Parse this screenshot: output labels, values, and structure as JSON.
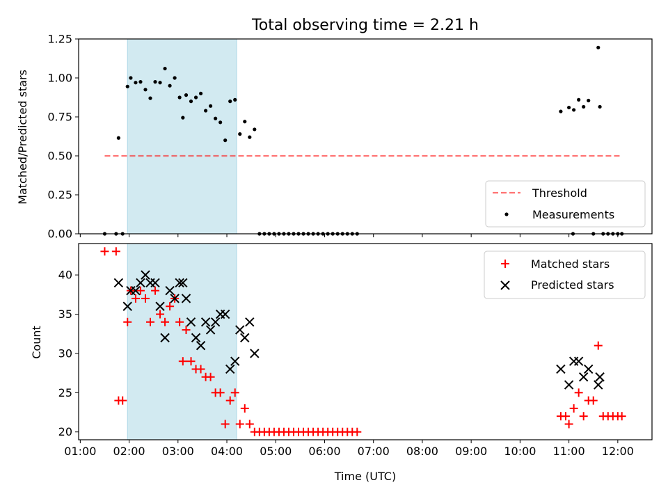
{
  "title": "Total observing time = 2.21 h",
  "chart_data": [
    {
      "type": "scatter",
      "ylabel": "Matched/Predicted stars",
      "ylim": [
        0,
        1.25
      ],
      "yticks": [
        "0.00",
        "0.25",
        "0.50",
        "0.75",
        "1.00",
        "1.25"
      ],
      "shaded_span": {
        "from": "01:58",
        "to": "04:12",
        "color": "#add8e6"
      },
      "threshold": {
        "name": "Threshold",
        "y": 0.5,
        "x_from": "01:30",
        "x_to": "12:05",
        "color": "#ff0000",
        "style": "dashed"
      },
      "legend": {
        "position": "lower right",
        "entries": [
          "Threshold",
          "Measurements"
        ]
      },
      "series": [
        {
          "name": "Measurements",
          "color": "#000000",
          "marker": "dot",
          "points": [
            {
              "x": "01:30",
              "y": 0
            },
            {
              "x": "01:44",
              "y": 0
            },
            {
              "x": "01:47",
              "y": 0.615
            },
            {
              "x": "01:52",
              "y": 0
            },
            {
              "x": "01:58",
              "y": 0.945
            },
            {
              "x": "02:02",
              "y": 1.0
            },
            {
              "x": "02:08",
              "y": 0.97
            },
            {
              "x": "02:14",
              "y": 0.975
            },
            {
              "x": "02:20",
              "y": 0.925
            },
            {
              "x": "02:26",
              "y": 0.87
            },
            {
              "x": "02:32",
              "y": 0.975
            },
            {
              "x": "02:38",
              "y": 0.97
            },
            {
              "x": "02:44",
              "y": 1.06
            },
            {
              "x": "02:50",
              "y": 0.95
            },
            {
              "x": "02:56",
              "y": 1.0
            },
            {
              "x": "03:02",
              "y": 0.875
            },
            {
              "x": "03:06",
              "y": 0.745
            },
            {
              "x": "03:10",
              "y": 0.89
            },
            {
              "x": "03:16",
              "y": 0.85
            },
            {
              "x": "03:22",
              "y": 0.875
            },
            {
              "x": "03:28",
              "y": 0.9
            },
            {
              "x": "03:34",
              "y": 0.79
            },
            {
              "x": "03:40",
              "y": 0.82
            },
            {
              "x": "03:46",
              "y": 0.74
            },
            {
              "x": "03:52",
              "y": 0.715
            },
            {
              "x": "03:58",
              "y": 0.6
            },
            {
              "x": "04:04",
              "y": 0.85
            },
            {
              "x": "04:10",
              "y": 0.86
            },
            {
              "x": "04:16",
              "y": 0.64
            },
            {
              "x": "04:22",
              "y": 0.72
            },
            {
              "x": "04:28",
              "y": 0.62
            },
            {
              "x": "04:34",
              "y": 0.67
            },
            {
              "x": "04:40",
              "y": 0
            },
            {
              "x": "04:46",
              "y": 0
            },
            {
              "x": "04:52",
              "y": 0
            },
            {
              "x": "04:58",
              "y": 0
            },
            {
              "x": "05:04",
              "y": 0
            },
            {
              "x": "05:10",
              "y": 0
            },
            {
              "x": "05:16",
              "y": 0
            },
            {
              "x": "05:22",
              "y": 0
            },
            {
              "x": "05:28",
              "y": 0
            },
            {
              "x": "05:34",
              "y": 0
            },
            {
              "x": "05:40",
              "y": 0
            },
            {
              "x": "05:46",
              "y": 0
            },
            {
              "x": "05:52",
              "y": 0
            },
            {
              "x": "05:58",
              "y": 0
            },
            {
              "x": "06:04",
              "y": 0
            },
            {
              "x": "06:10",
              "y": 0
            },
            {
              "x": "06:16",
              "y": 0
            },
            {
              "x": "06:22",
              "y": 0
            },
            {
              "x": "06:28",
              "y": 0
            },
            {
              "x": "06:34",
              "y": 0
            },
            {
              "x": "06:40",
              "y": 0
            },
            {
              "x": "10:50",
              "y": 0.785
            },
            {
              "x": "11:00",
              "y": 0.81
            },
            {
              "x": "11:05",
              "y": 0
            },
            {
              "x": "11:06",
              "y": 0.795
            },
            {
              "x": "11:12",
              "y": 0.86
            },
            {
              "x": "11:18",
              "y": 0.815
            },
            {
              "x": "11:24",
              "y": 0.855
            },
            {
              "x": "11:30",
              "y": 0
            },
            {
              "x": "11:36",
              "y": 1.195
            },
            {
              "x": "11:38",
              "y": 0.815
            },
            {
              "x": "11:42",
              "y": 0
            },
            {
              "x": "11:48",
              "y": 0
            },
            {
              "x": "11:54",
              "y": 0
            },
            {
              "x": "12:00",
              "y": 0
            },
            {
              "x": "12:05",
              "y": 0
            }
          ]
        }
      ]
    },
    {
      "type": "scatter",
      "xlabel": "Time (UTC)",
      "ylabel": "Count",
      "xlim": [
        "00:58",
        "12:42"
      ],
      "ylim": [
        19,
        44
      ],
      "yticks": [
        "20",
        "25",
        "30",
        "35",
        "40"
      ],
      "xticks": [
        "01:00",
        "02:00",
        "03:00",
        "04:00",
        "05:00",
        "06:00",
        "07:00",
        "08:00",
        "09:00",
        "10:00",
        "11:00",
        "12:00"
      ],
      "shaded_span": {
        "from": "01:58",
        "to": "04:12",
        "color": "#add8e6"
      },
      "legend": {
        "position": "upper right",
        "entries": [
          "Matched stars",
          "Predicted stars"
        ]
      },
      "series": [
        {
          "name": "Matched stars",
          "color": "#ff0000",
          "marker": "plus",
          "points": [
            {
              "x": "01:30",
              "y": 43
            },
            {
              "x": "01:44",
              "y": 43
            },
            {
              "x": "01:47",
              "y": 24
            },
            {
              "x": "01:52",
              "y": 24
            },
            {
              "x": "01:58",
              "y": 34
            },
            {
              "x": "02:02",
              "y": 38
            },
            {
              "x": "02:08",
              "y": 37
            },
            {
              "x": "02:14",
              "y": 38
            },
            {
              "x": "02:20",
              "y": 37
            },
            {
              "x": "02:26",
              "y": 34
            },
            {
              "x": "02:32",
              "y": 38
            },
            {
              "x": "02:38",
              "y": 35
            },
            {
              "x": "02:44",
              "y": 34
            },
            {
              "x": "02:50",
              "y": 36
            },
            {
              "x": "02:56",
              "y": 37
            },
            {
              "x": "03:02",
              "y": 34
            },
            {
              "x": "03:06",
              "y": 29
            },
            {
              "x": "03:10",
              "y": 33
            },
            {
              "x": "03:16",
              "y": 29
            },
            {
              "x": "03:22",
              "y": 28
            },
            {
              "x": "03:28",
              "y": 28
            },
            {
              "x": "03:34",
              "y": 27
            },
            {
              "x": "03:40",
              "y": 27
            },
            {
              "x": "03:46",
              "y": 25
            },
            {
              "x": "03:52",
              "y": 25
            },
            {
              "x": "03:58",
              "y": 21
            },
            {
              "x": "04:04",
              "y": 24
            },
            {
              "x": "04:10",
              "y": 25
            },
            {
              "x": "04:16",
              "y": 21
            },
            {
              "x": "04:22",
              "y": 23
            },
            {
              "x": "04:28",
              "y": 21
            },
            {
              "x": "04:34",
              "y": 20
            },
            {
              "x": "04:40",
              "y": 20
            },
            {
              "x": "04:46",
              "y": 20
            },
            {
              "x": "04:52",
              "y": 20
            },
            {
              "x": "04:58",
              "y": 20
            },
            {
              "x": "05:04",
              "y": 20
            },
            {
              "x": "05:10",
              "y": 20
            },
            {
              "x": "05:16",
              "y": 20
            },
            {
              "x": "05:22",
              "y": 20
            },
            {
              "x": "05:28",
              "y": 20
            },
            {
              "x": "05:34",
              "y": 20
            },
            {
              "x": "05:40",
              "y": 20
            },
            {
              "x": "05:46",
              "y": 20
            },
            {
              "x": "05:52",
              "y": 20
            },
            {
              "x": "05:58",
              "y": 20
            },
            {
              "x": "06:04",
              "y": 20
            },
            {
              "x": "06:10",
              "y": 20
            },
            {
              "x": "06:16",
              "y": 20
            },
            {
              "x": "06:22",
              "y": 20
            },
            {
              "x": "06:28",
              "y": 20
            },
            {
              "x": "06:34",
              "y": 20
            },
            {
              "x": "06:40",
              "y": 20
            },
            {
              "x": "10:50",
              "y": 22
            },
            {
              "x": "10:56",
              "y": 22
            },
            {
              "x": "11:00",
              "y": 21
            },
            {
              "x": "11:06",
              "y": 23
            },
            {
              "x": "11:12",
              "y": 25
            },
            {
              "x": "11:18",
              "y": 22
            },
            {
              "x": "11:24",
              "y": 24
            },
            {
              "x": "11:30",
              "y": 24
            },
            {
              "x": "11:36",
              "y": 31
            },
            {
              "x": "11:42",
              "y": 22
            },
            {
              "x": "11:48",
              "y": 22
            },
            {
              "x": "11:54",
              "y": 22
            },
            {
              "x": "12:00",
              "y": 22
            },
            {
              "x": "12:05",
              "y": 22
            }
          ]
        },
        {
          "name": "Predicted stars",
          "color": "#000000",
          "marker": "x",
          "points": [
            {
              "x": "01:47",
              "y": 39
            },
            {
              "x": "01:58",
              "y": 36
            },
            {
              "x": "02:02",
              "y": 38
            },
            {
              "x": "02:08",
              "y": 38
            },
            {
              "x": "02:14",
              "y": 39
            },
            {
              "x": "02:20",
              "y": 40
            },
            {
              "x": "02:26",
              "y": 39
            },
            {
              "x": "02:32",
              "y": 39
            },
            {
              "x": "02:38",
              "y": 36
            },
            {
              "x": "02:44",
              "y": 32
            },
            {
              "x": "02:50",
              "y": 38
            },
            {
              "x": "02:56",
              "y": 37
            },
            {
              "x": "03:02",
              "y": 39
            },
            {
              "x": "03:06",
              "y": 39
            },
            {
              "x": "03:10",
              "y": 37
            },
            {
              "x": "03:16",
              "y": 34
            },
            {
              "x": "03:22",
              "y": 32
            },
            {
              "x": "03:28",
              "y": 31
            },
            {
              "x": "03:34",
              "y": 34
            },
            {
              "x": "03:40",
              "y": 33
            },
            {
              "x": "03:46",
              "y": 34
            },
            {
              "x": "03:52",
              "y": 35
            },
            {
              "x": "03:58",
              "y": 35
            },
            {
              "x": "04:04",
              "y": 28
            },
            {
              "x": "04:10",
              "y": 29
            },
            {
              "x": "04:16",
              "y": 33
            },
            {
              "x": "04:22",
              "y": 32
            },
            {
              "x": "04:28",
              "y": 34
            },
            {
              "x": "04:34",
              "y": 30
            },
            {
              "x": "10:50",
              "y": 28
            },
            {
              "x": "11:00",
              "y": 26
            },
            {
              "x": "11:06",
              "y": 29
            },
            {
              "x": "11:12",
              "y": 29
            },
            {
              "x": "11:18",
              "y": 27
            },
            {
              "x": "11:24",
              "y": 28
            },
            {
              "x": "11:36",
              "y": 26
            },
            {
              "x": "11:38",
              "y": 27
            }
          ]
        }
      ]
    }
  ]
}
